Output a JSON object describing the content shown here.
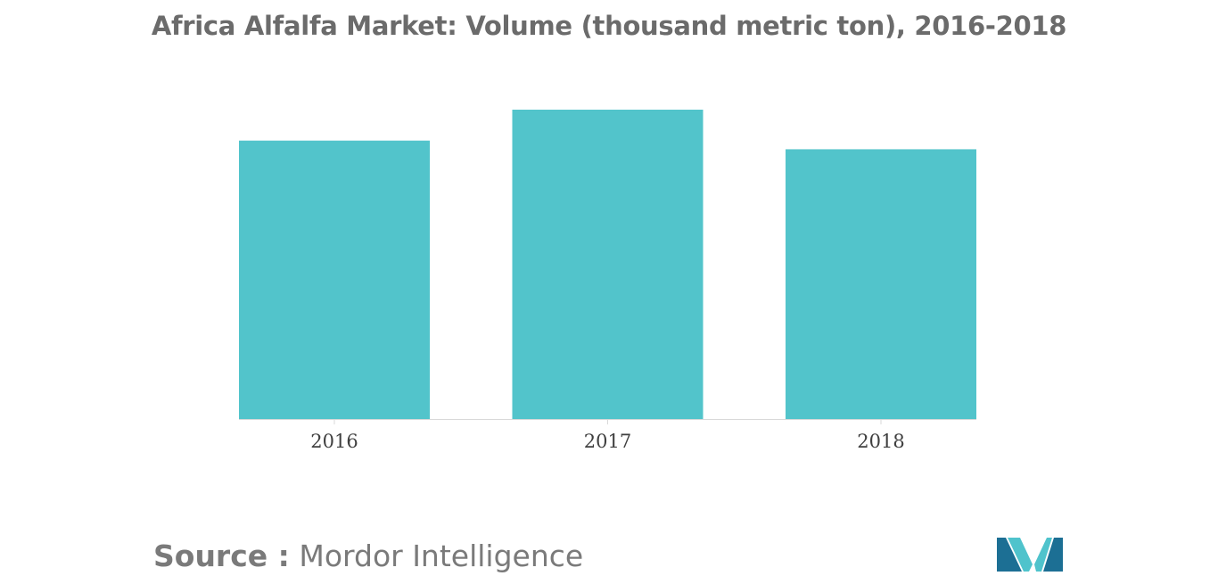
{
  "chart_data": {
    "type": "bar",
    "title": "Africa Alfalfa Market: Volume (thousand metric ton), 2016-2018",
    "categories": [
      "2016",
      "2017",
      "2018"
    ],
    "values": [
      90,
      100,
      87.2
    ],
    "xlabel": "",
    "ylabel": "",
    "ylim": [
      0,
      100
    ],
    "grid": false,
    "legend": "none"
  },
  "source": {
    "label": "Source :",
    "name": "Mordor Intelligence"
  },
  "colors": {
    "bar": "#52c4cb",
    "title": "#6b6b6b",
    "axis": "#d9d9d9",
    "logo_dark": "#1c6f94",
    "logo_light": "#4fc3cc"
  },
  "logo": {
    "icon": "mordor-intelligence-logo-icon"
  }
}
